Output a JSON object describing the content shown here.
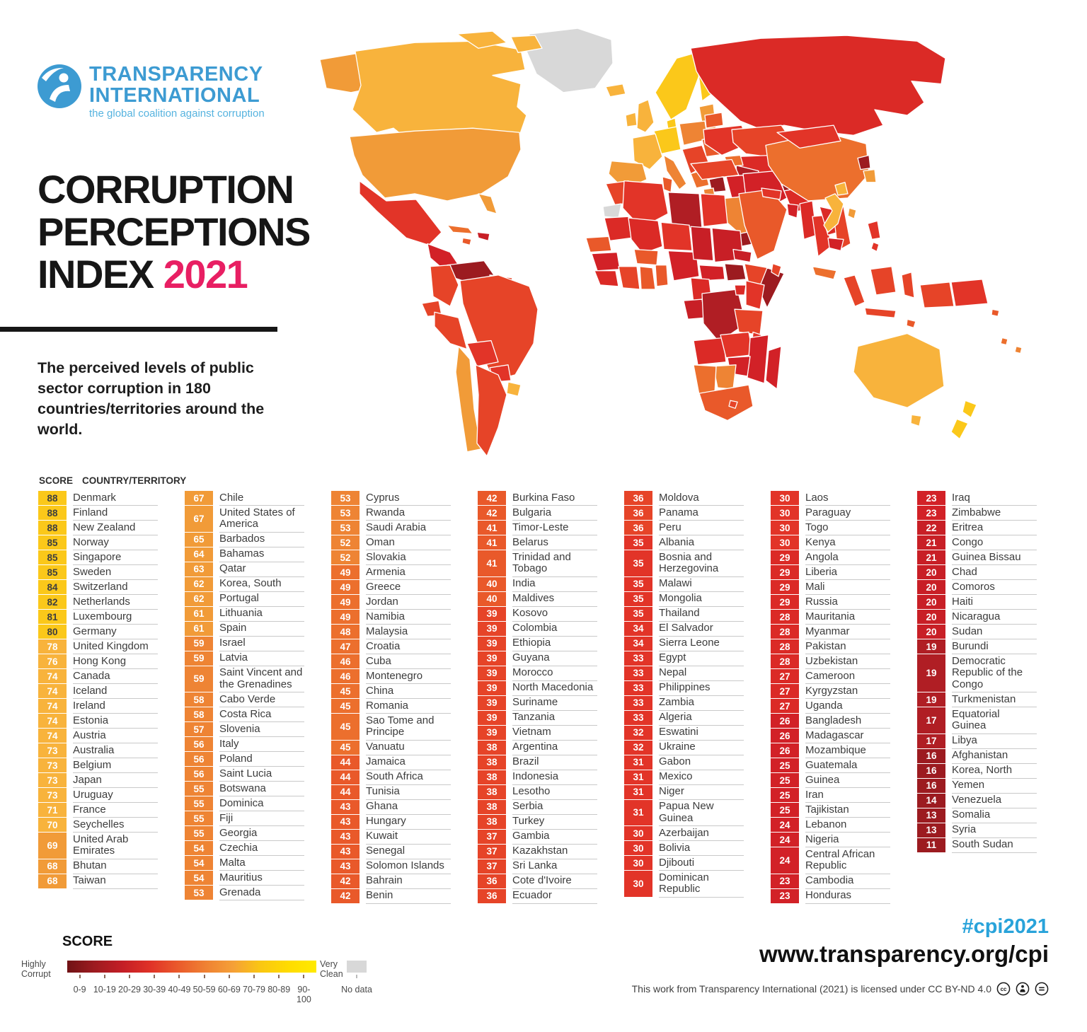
{
  "logo": {
    "line1": "TRANSPARENCY",
    "line2": "INTERNATIONAL",
    "tagline": "the global coalition against corruption",
    "blue": "#3D9BD2",
    "tagline_blue": "#56B3DF"
  },
  "title": {
    "line1": "CORRUPTION",
    "line2": "PERCEPTIONS",
    "line3_prefix": "INDEX ",
    "line3_year": "2021",
    "year_color": "#E81F63"
  },
  "subtitle": "The perceived levels of public sector corruption in 180 countries/territories around the world.",
  "table_header": {
    "score": "SCORE",
    "country": "COUNTRY/TERRITORY"
  },
  "cell_text": {
    "dark": "#3E3E3E",
    "light": "#FFFFFF",
    "dark_threshold": 80
  },
  "palette": {
    "b90": "#FFE000",
    "b80": "#FBC81A",
    "b70": "#F8B33C",
    "b60": "#F19B38",
    "b50": "#EE8434",
    "b45": "#EC6F2D",
    "b40": "#E9592A",
    "b36": "#E64428",
    "b30": "#E23428",
    "b27": "#DB2A26",
    "b23": "#D22127",
    "b20": "#C81F26",
    "b17": "#B01E24",
    "b11": "#9C1B20",
    "nodata": "#D8D8D8"
  },
  "score_bands": [
    {
      "min": 90,
      "key": "b90"
    },
    {
      "min": 80,
      "key": "b80"
    },
    {
      "min": 70,
      "key": "b70"
    },
    {
      "min": 60,
      "key": "b60"
    },
    {
      "min": 50,
      "key": "b50"
    },
    {
      "min": 45,
      "key": "b45"
    },
    {
      "min": 40,
      "key": "b40"
    },
    {
      "min": 36,
      "key": "b36"
    },
    {
      "min": 30,
      "key": "b30"
    },
    {
      "min": 27,
      "key": "b27"
    },
    {
      "min": 23,
      "key": "b23"
    },
    {
      "min": 20,
      "key": "b20"
    },
    {
      "min": 17,
      "key": "b17"
    },
    {
      "min": 0,
      "key": "b11"
    }
  ],
  "chart_data": {
    "type": "choropleth_map_and_ranked_table",
    "title": "Corruption Perceptions Index 2021",
    "score_range": [
      0,
      100
    ],
    "columns": [
      [
        {
          "s": 88,
          "n": "Denmark"
        },
        {
          "s": 88,
          "n": "Finland"
        },
        {
          "s": 88,
          "n": "New Zealand"
        },
        {
          "s": 85,
          "n": "Norway"
        },
        {
          "s": 85,
          "n": "Singapore"
        },
        {
          "s": 85,
          "n": "Sweden"
        },
        {
          "s": 84,
          "n": "Switzerland"
        },
        {
          "s": 82,
          "n": "Netherlands"
        },
        {
          "s": 81,
          "n": "Luxembourg"
        },
        {
          "s": 80,
          "n": "Germany"
        },
        {
          "s": 78,
          "n": "United Kingdom"
        },
        {
          "s": 76,
          "n": "Hong Kong"
        },
        {
          "s": 74,
          "n": "Canada"
        },
        {
          "s": 74,
          "n": "Iceland"
        },
        {
          "s": 74,
          "n": "Ireland"
        },
        {
          "s": 74,
          "n": "Estonia"
        },
        {
          "s": 74,
          "n": "Austria"
        },
        {
          "s": 73,
          "n": "Australia"
        },
        {
          "s": 73,
          "n": "Belgium"
        },
        {
          "s": 73,
          "n": "Japan"
        },
        {
          "s": 73,
          "n": "Uruguay"
        },
        {
          "s": 71,
          "n": "France"
        },
        {
          "s": 70,
          "n": "Seychelles"
        },
        {
          "s": 69,
          "n": "United Arab Emirates"
        },
        {
          "s": 68,
          "n": "Bhutan"
        },
        {
          "s": 68,
          "n": "Taiwan"
        }
      ],
      [
        {
          "s": 67,
          "n": "Chile"
        },
        {
          "s": 67,
          "n": "United States of America"
        },
        {
          "s": 65,
          "n": "Barbados"
        },
        {
          "s": 64,
          "n": "Bahamas"
        },
        {
          "s": 63,
          "n": "Qatar"
        },
        {
          "s": 62,
          "n": "Korea, South"
        },
        {
          "s": 62,
          "n": "Portugal"
        },
        {
          "s": 61,
          "n": "Lithuania"
        },
        {
          "s": 61,
          "n": "Spain"
        },
        {
          "s": 59,
          "n": "Israel"
        },
        {
          "s": 59,
          "n": "Latvia"
        },
        {
          "s": 59,
          "n": "Saint Vincent and the Grenadines"
        },
        {
          "s": 58,
          "n": "Cabo Verde"
        },
        {
          "s": 58,
          "n": "Costa Rica"
        },
        {
          "s": 57,
          "n": "Slovenia"
        },
        {
          "s": 56,
          "n": "Italy"
        },
        {
          "s": 56,
          "n": "Poland"
        },
        {
          "s": 56,
          "n": "Saint Lucia"
        },
        {
          "s": 55,
          "n": "Botswana"
        },
        {
          "s": 55,
          "n": "Dominica"
        },
        {
          "s": 55,
          "n": "Fiji"
        },
        {
          "s": 55,
          "n": "Georgia"
        },
        {
          "s": 54,
          "n": "Czechia"
        },
        {
          "s": 54,
          "n": "Malta"
        },
        {
          "s": 54,
          "n": "Mauritius"
        },
        {
          "s": 53,
          "n": "Grenada"
        }
      ],
      [
        {
          "s": 53,
          "n": "Cyprus"
        },
        {
          "s": 53,
          "n": "Rwanda"
        },
        {
          "s": 53,
          "n": "Saudi Arabia"
        },
        {
          "s": 52,
          "n": "Oman"
        },
        {
          "s": 52,
          "n": "Slovakia"
        },
        {
          "s": 49,
          "n": "Armenia"
        },
        {
          "s": 49,
          "n": "Greece"
        },
        {
          "s": 49,
          "n": "Jordan"
        },
        {
          "s": 49,
          "n": "Namibia"
        },
        {
          "s": 48,
          "n": "Malaysia"
        },
        {
          "s": 47,
          "n": "Croatia"
        },
        {
          "s": 46,
          "n": "Cuba"
        },
        {
          "s": 46,
          "n": "Montenegro"
        },
        {
          "s": 45,
          "n": "China"
        },
        {
          "s": 45,
          "n": "Romania"
        },
        {
          "s": 45,
          "n": "Sao Tome and Principe"
        },
        {
          "s": 45,
          "n": "Vanuatu"
        },
        {
          "s": 44,
          "n": "Jamaica"
        },
        {
          "s": 44,
          "n": "South Africa"
        },
        {
          "s": 44,
          "n": "Tunisia"
        },
        {
          "s": 43,
          "n": "Ghana"
        },
        {
          "s": 43,
          "n": "Hungary"
        },
        {
          "s": 43,
          "n": "Kuwait"
        },
        {
          "s": 43,
          "n": "Senegal"
        },
        {
          "s": 43,
          "n": "Solomon Islands"
        },
        {
          "s": 42,
          "n": "Bahrain"
        },
        {
          "s": 42,
          "n": "Benin"
        }
      ],
      [
        {
          "s": 42,
          "n": "Burkina Faso"
        },
        {
          "s": 42,
          "n": "Bulgaria"
        },
        {
          "s": 41,
          "n": "Timor-Leste"
        },
        {
          "s": 41,
          "n": "Belarus"
        },
        {
          "s": 41,
          "n": "Trinidad and Tobago"
        },
        {
          "s": 40,
          "n": "India"
        },
        {
          "s": 40,
          "n": "Maldives"
        },
        {
          "s": 39,
          "n": "Kosovo"
        },
        {
          "s": 39,
          "n": "Colombia"
        },
        {
          "s": 39,
          "n": "Ethiopia"
        },
        {
          "s": 39,
          "n": "Guyana"
        },
        {
          "s": 39,
          "n": "Morocco"
        },
        {
          "s": 39,
          "n": "North Macedonia"
        },
        {
          "s": 39,
          "n": "Suriname"
        },
        {
          "s": 39,
          "n": "Tanzania"
        },
        {
          "s": 39,
          "n": "Vietnam"
        },
        {
          "s": 38,
          "n": "Argentina"
        },
        {
          "s": 38,
          "n": "Brazil"
        },
        {
          "s": 38,
          "n": "Indonesia"
        },
        {
          "s": 38,
          "n": "Lesotho"
        },
        {
          "s": 38,
          "n": "Serbia"
        },
        {
          "s": 38,
          "n": "Turkey"
        },
        {
          "s": 37,
          "n": "Gambia"
        },
        {
          "s": 37,
          "n": "Kazakhstan"
        },
        {
          "s": 37,
          "n": "Sri Lanka"
        },
        {
          "s": 36,
          "n": "Cote d'Ivoire"
        },
        {
          "s": 36,
          "n": "Ecuador"
        }
      ],
      [
        {
          "s": 36,
          "n": "Moldova"
        },
        {
          "s": 36,
          "n": "Panama"
        },
        {
          "s": 36,
          "n": "Peru"
        },
        {
          "s": 35,
          "n": "Albania"
        },
        {
          "s": 35,
          "n": "Bosnia and Herzegovina"
        },
        {
          "s": 35,
          "n": "Malawi"
        },
        {
          "s": 35,
          "n": "Mongolia"
        },
        {
          "s": 35,
          "n": "Thailand"
        },
        {
          "s": 34,
          "n": "El Salvador"
        },
        {
          "s": 34,
          "n": "Sierra Leone"
        },
        {
          "s": 33,
          "n": "Egypt"
        },
        {
          "s": 33,
          "n": "Nepal"
        },
        {
          "s": 33,
          "n": "Philippines"
        },
        {
          "s": 33,
          "n": "Zambia"
        },
        {
          "s": 33,
          "n": "Algeria"
        },
        {
          "s": 32,
          "n": "Eswatini"
        },
        {
          "s": 32,
          "n": "Ukraine"
        },
        {
          "s": 31,
          "n": "Gabon"
        },
        {
          "s": 31,
          "n": "Mexico"
        },
        {
          "s": 31,
          "n": "Niger"
        },
        {
          "s": 31,
          "n": "Papua New Guinea"
        },
        {
          "s": 30,
          "n": "Azerbaijan"
        },
        {
          "s": 30,
          "n": "Bolivia"
        },
        {
          "s": 30,
          "n": "Djibouti"
        },
        {
          "s": 30,
          "n": "Dominican Republic"
        }
      ],
      [
        {
          "s": 30,
          "n": "Laos"
        },
        {
          "s": 30,
          "n": "Paraguay"
        },
        {
          "s": 30,
          "n": "Togo"
        },
        {
          "s": 30,
          "n": "Kenya"
        },
        {
          "s": 29,
          "n": "Angola"
        },
        {
          "s": 29,
          "n": "Liberia"
        },
        {
          "s": 29,
          "n": "Mali"
        },
        {
          "s": 29,
          "n": "Russia"
        },
        {
          "s": 28,
          "n": "Mauritania"
        },
        {
          "s": 28,
          "n": "Myanmar"
        },
        {
          "s": 28,
          "n": "Pakistan"
        },
        {
          "s": 28,
          "n": "Uzbekistan"
        },
        {
          "s": 27,
          "n": "Cameroon"
        },
        {
          "s": 27,
          "n": "Kyrgyzstan"
        },
        {
          "s": 27,
          "n": "Uganda"
        },
        {
          "s": 26,
          "n": "Bangladesh"
        },
        {
          "s": 26,
          "n": "Madagascar"
        },
        {
          "s": 26,
          "n": "Mozambique"
        },
        {
          "s": 25,
          "n": "Guatemala"
        },
        {
          "s": 25,
          "n": "Guinea"
        },
        {
          "s": 25,
          "n": "Iran"
        },
        {
          "s": 25,
          "n": "Tajikistan"
        },
        {
          "s": 24,
          "n": "Lebanon"
        },
        {
          "s": 24,
          "n": "Nigeria"
        },
        {
          "s": 24,
          "n": "Central African Republic"
        },
        {
          "s": 23,
          "n": "Cambodia"
        },
        {
          "s": 23,
          "n": "Honduras"
        }
      ],
      [
        {
          "s": 23,
          "n": "Iraq"
        },
        {
          "s": 23,
          "n": "Zimbabwe"
        },
        {
          "s": 22,
          "n": "Eritrea"
        },
        {
          "s": 21,
          "n": "Congo"
        },
        {
          "s": 21,
          "n": "Guinea Bissau"
        },
        {
          "s": 20,
          "n": "Chad"
        },
        {
          "s": 20,
          "n": "Comoros"
        },
        {
          "s": 20,
          "n": "Haiti"
        },
        {
          "s": 20,
          "n": "Nicaragua"
        },
        {
          "s": 20,
          "n": "Sudan"
        },
        {
          "s": 19,
          "n": "Burundi"
        },
        {
          "s": 19,
          "n": "Democratic Republic of the Congo"
        },
        {
          "s": 19,
          "n": "Turkmenistan"
        },
        {
          "s": 17,
          "n": "Equatorial Guinea"
        },
        {
          "s": 17,
          "n": "Libya"
        },
        {
          "s": 16,
          "n": "Afghanistan"
        },
        {
          "s": 16,
          "n": "Korea, North"
        },
        {
          "s": 16,
          "n": "Yemen"
        },
        {
          "s": 14,
          "n": "Venezuela"
        },
        {
          "s": 13,
          "n": "Somalia"
        },
        {
          "s": 13,
          "n": "Syria"
        },
        {
          "s": 11,
          "n": "South Sudan"
        }
      ]
    ]
  },
  "legend": {
    "title": "SCORE",
    "left_label_1": "Highly",
    "left_label_2": "Corrupt",
    "right_label_1": "Very",
    "right_label_2": "Clean",
    "ranges": [
      "0-9",
      "10-19",
      "20-29",
      "30-39",
      "40-49",
      "50-59",
      "60-69",
      "70-79",
      "80-89",
      "90-100"
    ],
    "no_data_label": "No data",
    "gradient": [
      "#701215",
      "#9E1B20",
      "#C41E26",
      "#E03227",
      "#EA5A2B",
      "#EF8133",
      "#F5A037",
      "#FAC712",
      "#FFDC00",
      "#FFEA00"
    ]
  },
  "footer": {
    "hashtag": "#cpi2021",
    "hashtag_color": "#29A3DA",
    "url": "www.transparency.org/cpi",
    "license": "This work from Transparency International (2021) is licensed under CC BY-ND 4.0"
  }
}
